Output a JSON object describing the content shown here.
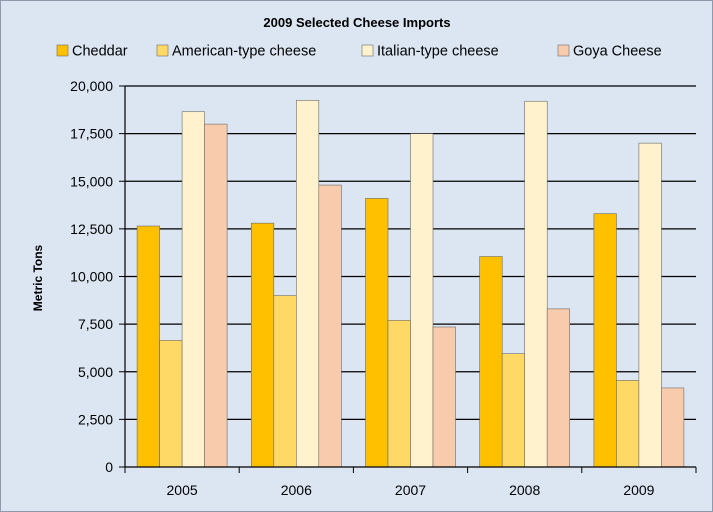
{
  "chart_data": {
    "type": "bar",
    "title": "2009 Selected Cheese Imports",
    "xlabel": "",
    "ylabel": "Metric Tons",
    "categories": [
      "2005",
      "2006",
      "2007",
      "2008",
      "2009"
    ],
    "ylim": [
      0,
      20000
    ],
    "yticks": [
      0,
      2500,
      5000,
      7500,
      10000,
      12500,
      15000,
      17500,
      20000
    ],
    "ytick_labels": [
      "0",
      "2,500",
      "5,000",
      "7,500",
      "10,000",
      "12,500",
      "15,000",
      "17,500",
      "20,000"
    ],
    "grid": true,
    "legend_position": "top",
    "series": [
      {
        "name": "Cheddar",
        "color": "#ffc000",
        "values": [
          12650,
          12800,
          14100,
          11050,
          13300
        ]
      },
      {
        "name": "American-type cheese",
        "color": "#ffd966",
        "values": [
          6650,
          9000,
          7700,
          5950,
          4550
        ]
      },
      {
        "name": "Italian-type cheese",
        "color": "#fff2cc",
        "values": [
          18650,
          19250,
          17500,
          19200,
          17000
        ]
      },
      {
        "name": "Goya Cheese",
        "color": "#f8cbad",
        "values": [
          18000,
          14800,
          7350,
          8300,
          4150
        ]
      }
    ]
  }
}
